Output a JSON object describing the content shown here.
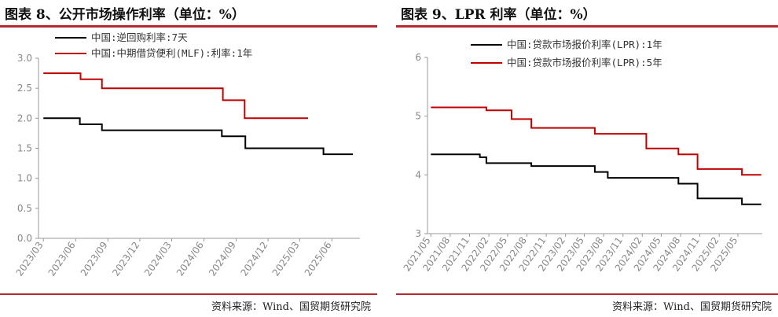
{
  "charts": [
    {
      "title": "图表 8、公开市场操作利率（单位：%）",
      "source": "资料来源：Wind、国贸期货研究院",
      "chart_data": {
        "type": "line",
        "title": "图表 8、公开市场操作利率（单位：%）",
        "xlabel": "",
        "ylabel": "",
        "ylim": [
          0.0,
          3.0
        ],
        "yticks": [
          "0.0",
          "0.5",
          "1.0",
          "1.5",
          "2.0",
          "2.5",
          "3.0"
        ],
        "x_tick_labels": [
          "2023/03",
          "2023/06",
          "2023/09",
          "2023/12",
          "2024/03",
          "2024/06",
          "2024/09",
          "2024/12",
          "2025/03",
          "2025/06"
        ],
        "legend_position": "top-left",
        "series": [
          {
            "name": "中国:逆回购利率:7天",
            "color": "#000000",
            "points": [
              [
                "2023-03-01",
                2.0
              ],
              [
                "2023-06-13",
                2.0
              ],
              [
                "2023-06-13",
                1.9
              ],
              [
                "2023-08-15",
                1.9
              ],
              [
                "2023-08-15",
                1.8
              ],
              [
                "2024-07-22",
                1.8
              ],
              [
                "2024-07-22",
                1.7
              ],
              [
                "2024-09-27",
                1.7
              ],
              [
                "2024-09-27",
                1.5
              ],
              [
                "2025-05-08",
                1.5
              ],
              [
                "2025-05-08",
                1.4
              ],
              [
                "2025-07-31",
                1.4
              ]
            ]
          },
          {
            "name": "中国:中期借贷便利(MLF):利率:1年",
            "color": "#c00000",
            "points": [
              [
                "2023-03-01",
                2.75
              ],
              [
                "2023-06-15",
                2.75
              ],
              [
                "2023-06-15",
                2.65
              ],
              [
                "2023-08-15",
                2.65
              ],
              [
                "2023-08-15",
                2.5
              ],
              [
                "2024-07-25",
                2.5
              ],
              [
                "2024-07-25",
                2.3
              ],
              [
                "2024-09-25",
                2.3
              ],
              [
                "2024-09-25",
                2.0
              ],
              [
                "2025-03-25",
                2.0
              ]
            ]
          }
        ]
      }
    },
    {
      "title": "图表 9、LPR 利率（单位：%）",
      "source": "资料来源：Wind、国贸期货研究院",
      "chart_data": {
        "type": "line",
        "title": "图表 9、LPR 利率（单位：%）",
        "xlabel": "",
        "ylabel": "",
        "ylim": [
          3,
          6
        ],
        "yticks": [
          "3",
          "4",
          "5",
          "6"
        ],
        "x_tick_labels": [
          "2021/05",
          "2021/08",
          "2021/11",
          "2022/02",
          "2022/05",
          "2022/08",
          "2022/11",
          "2023/02",
          "2023/05",
          "2023/08",
          "2023/11",
          "2024/02",
          "2024/05",
          "2024/08",
          "2024/11",
          "2025/02",
          "2025/05"
        ],
        "legend_position": "top-left",
        "series": [
          {
            "name": "中国:贷款市场报价利率(LPR):1年",
            "color": "#000000",
            "points": [
              [
                "2021-05-01",
                4.35
              ],
              [
                "2021-12-20",
                4.35
              ],
              [
                "2021-12-20",
                4.3
              ],
              [
                "2022-01-20",
                4.3
              ],
              [
                "2022-01-20",
                4.2
              ],
              [
                "2022-08-22",
                4.2
              ],
              [
                "2022-08-22",
                4.15
              ],
              [
                "2023-06-20",
                4.15
              ],
              [
                "2023-06-20",
                4.05
              ],
              [
                "2023-08-21",
                4.05
              ],
              [
                "2023-08-21",
                3.95
              ],
              [
                "2024-07-22",
                3.95
              ],
              [
                "2024-07-22",
                3.85
              ],
              [
                "2024-10-21",
                3.85
              ],
              [
                "2024-10-21",
                3.6
              ],
              [
                "2025-05-20",
                3.6
              ],
              [
                "2025-05-20",
                3.5
              ],
              [
                "2025-08-20",
                3.5
              ]
            ]
          },
          {
            "name": "中国:贷款市场报价利率(LPR):5年",
            "color": "#c00000",
            "points": [
              [
                "2021-05-01",
                5.15
              ],
              [
                "2022-01-20",
                5.15
              ],
              [
                "2022-01-20",
                5.1
              ],
              [
                "2022-05-20",
                5.1
              ],
              [
                "2022-05-20",
                4.95
              ],
              [
                "2022-08-22",
                4.95
              ],
              [
                "2022-08-22",
                4.8
              ],
              [
                "2023-06-20",
                4.8
              ],
              [
                "2023-06-20",
                4.7
              ],
              [
                "2024-02-20",
                4.7
              ],
              [
                "2024-02-20",
                4.45
              ],
              [
                "2024-07-22",
                4.45
              ],
              [
                "2024-07-22",
                4.35
              ],
              [
                "2024-10-21",
                4.35
              ],
              [
                "2024-10-21",
                4.1
              ],
              [
                "2025-05-20",
                4.1
              ],
              [
                "2025-05-20",
                4.0
              ],
              [
                "2025-08-20",
                4.0
              ]
            ]
          }
        ]
      }
    }
  ]
}
